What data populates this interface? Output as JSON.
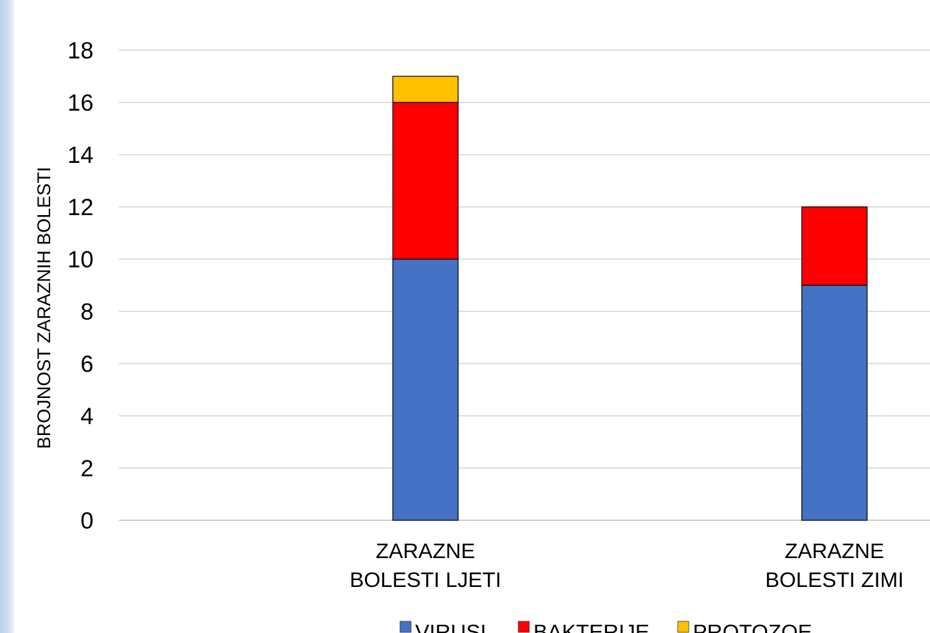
{
  "chart_data": {
    "type": "bar",
    "stacked": true,
    "title": "",
    "xlabel": "",
    "ylabel": "BROJNOST  ZARAZNIH  BOLESTI",
    "categories": [
      [
        "ZARAZNE",
        "BOLESTI LJETI"
      ],
      [
        "ZARAZNE",
        "BOLESTI ZIMI"
      ]
    ],
    "series": [
      {
        "name": "VIRUSI",
        "color": "#4472c4",
        "values": [
          10,
          9
        ]
      },
      {
        "name": "BAKTERIJE",
        "color": "#ff0000",
        "values": [
          6,
          3
        ]
      },
      {
        "name": "PROTOZOE",
        "color": "#ffc000",
        "values": [
          1,
          0
        ]
      }
    ],
    "ylim": [
      0,
      18
    ],
    "yticks": [
      0,
      2,
      4,
      6,
      8,
      10,
      12,
      14,
      16,
      18
    ],
    "grid": true,
    "legend_position": "bottom"
  }
}
